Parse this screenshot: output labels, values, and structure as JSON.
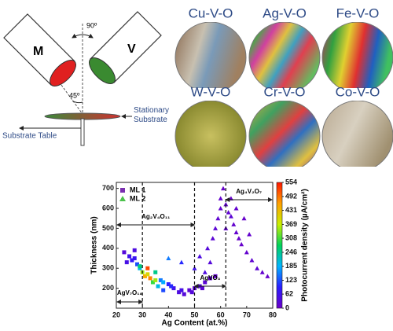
{
  "diagram": {
    "sources": [
      "M",
      "V"
    ],
    "angles": [
      "90º",
      "45º"
    ],
    "labels": [
      "Stationary Substrate",
      "Substrate Table"
    ]
  },
  "photos": [
    "Cu-V-O",
    "Ag-V-O",
    "Fe-V-O",
    "W-V-O",
    "Cr-V-O",
    "Co-V-O"
  ],
  "chart_data": {
    "type": "scatter",
    "xlabel": "Ag Content (at.%)",
    "ylabel": "Thickness (nm)",
    "xlim": [
      20,
      80
    ],
    "xticks": [
      20,
      30,
      40,
      50,
      60,
      70,
      80
    ],
    "ylim": [
      100,
      730
    ],
    "yticks": [
      200,
      300,
      400,
      500,
      600,
      700
    ],
    "colorbar": {
      "label": "Photocurrent density (µA/cm²)",
      "clim": [
        0,
        554
      ],
      "ticks": [
        0,
        62,
        123,
        185,
        246,
        308,
        369,
        431,
        492,
        554
      ],
      "colormap": [
        "#6a00c8",
        "#2a1cff",
        "#00b4ff",
        "#00d25a",
        "#c8f000",
        "#ffa000",
        "#ff1400"
      ]
    },
    "legend": "upper left",
    "phase_boundaries": [
      30,
      50,
      62
    ],
    "annotations": [
      "AgV₇O₁₈",
      "Ag₂V₄O₁₁",
      "Ag₄V₂O₇",
      "AgVO₃"
    ],
    "series": [
      {
        "name": "ML 1",
        "marker": "square",
        "color": "#7a2fb0",
        "x": [
          23,
          25,
          26,
          27,
          28,
          29,
          30,
          31,
          32,
          33,
          34,
          35,
          36,
          37,
          38,
          40,
          42,
          44,
          46,
          48,
          50,
          52,
          54,
          56,
          58,
          24,
          27,
          29,
          32,
          35,
          38,
          41,
          45,
          49,
          53
        ],
        "y": [
          380,
          360,
          340,
          390,
          320,
          300,
          280,
          260,
          300,
          250,
          230,
          280,
          210,
          240,
          190,
          220,
          200,
          180,
          170,
          190,
          200,
          210,
          230,
          250,
          260,
          330,
          350,
          310,
          270,
          240,
          230,
          210,
          190,
          180,
          200
        ],
        "c": [
          30,
          60,
          80,
          40,
          120,
          200,
          350,
          450,
          520,
          480,
          300,
          250,
          200,
          150,
          120,
          90,
          60,
          40,
          30,
          20,
          20,
          30,
          20,
          15,
          10,
          50,
          70,
          260,
          400,
          350,
          180,
          100,
          50,
          30,
          20
        ]
      },
      {
        "name": "ML 2",
        "marker": "triangle",
        "color": "#4cc24c",
        "x": [
          40,
          45,
          50,
          52,
          55,
          57,
          58,
          59,
          60,
          60,
          61,
          62,
          63,
          64,
          65,
          66,
          67,
          68,
          70,
          72,
          74,
          76,
          78,
          56,
          54,
          62,
          64,
          66,
          69,
          71
        ],
        "y": [
          350,
          330,
          300,
          360,
          400,
          450,
          500,
          550,
          600,
          650,
          700,
          620,
          580,
          560,
          520,
          480,
          450,
          420,
          380,
          340,
          300,
          280,
          260,
          330,
          280,
          500,
          650,
          600,
          550,
          470
        ],
        "c": [
          150,
          100,
          60,
          40,
          30,
          20,
          20,
          15,
          10,
          10,
          5,
          10,
          15,
          20,
          10,
          10,
          5,
          5,
          10,
          15,
          20,
          10,
          5,
          30,
          40,
          10,
          5,
          10,
          5,
          10
        ]
      }
    ]
  }
}
